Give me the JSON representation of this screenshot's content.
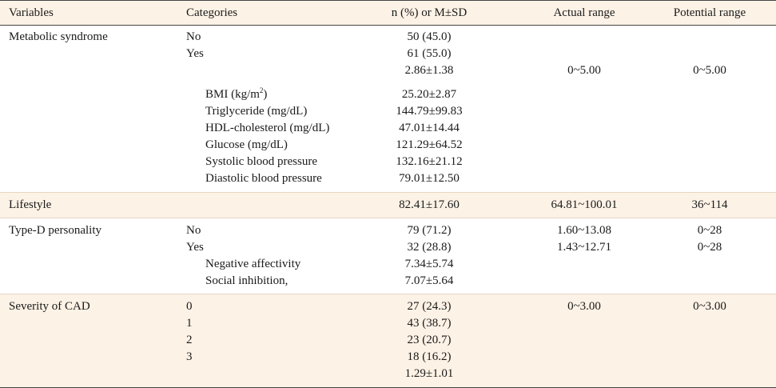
{
  "header": {
    "variables": "Variables",
    "categories": "Categories",
    "n": "n (%) or M±SD",
    "actual": "Actual range",
    "potential": "Potential range"
  },
  "metabolic": {
    "label": "Metabolic syndrome",
    "no": {
      "cat": "No",
      "n": "50 (45.0)"
    },
    "yes": {
      "cat": "Yes",
      "n": "61 (55.0)"
    },
    "total": {
      "n": "2.86±1.38",
      "actual": "0~5.00",
      "potential": "0~5.00"
    },
    "bmi": {
      "label_prefix": "BMI (kg/m",
      "label_sup": "2",
      "label_suffix": ")",
      "n": "25.20±2.87"
    },
    "items": [
      {
        "label": "Triglyceride (mg/dL)",
        "n": "144.79±99.83"
      },
      {
        "label": "HDL-cholesterol (mg/dL)",
        "n": "47.01±14.44"
      },
      {
        "label": "Glucose (mg/dL)",
        "n": "121.29±64.52"
      },
      {
        "label": "Systolic blood pressure",
        "n": "132.16±21.12"
      },
      {
        "label": "Diastolic blood pressure",
        "n": "79.01±12.50"
      }
    ]
  },
  "lifestyle": {
    "label": "Lifestyle",
    "n": "82.41±17.60",
    "actual": "64.81~100.01",
    "potential": "36~114"
  },
  "typed": {
    "label": "Type-D personality",
    "no": {
      "cat": "No",
      "n": "79 (71.2)",
      "actual": "1.60~13.08",
      "potential": "0~28"
    },
    "yes": {
      "cat": "Yes",
      "n": "32 (28.8)",
      "actual": "1.43~12.71",
      "potential": "0~28"
    },
    "neg": {
      "label": "Negative affectivity",
      "n": "7.34±5.74"
    },
    "soc": {
      "label": "Social inhibition,",
      "n": "7.07±5.64"
    }
  },
  "cad": {
    "label": "Severity of CAD",
    "levels": [
      {
        "cat": "0",
        "n": "27 (24.3)"
      },
      {
        "cat": "1",
        "n": "43 (38.7)"
      },
      {
        "cat": "2",
        "n": "23 (20.7)"
      },
      {
        "cat": "3",
        "n": "18 (16.2)"
      }
    ],
    "actual": "0~3.00",
    "potential": "0~3.00",
    "total": {
      "n": "1.29±1.01"
    }
  }
}
